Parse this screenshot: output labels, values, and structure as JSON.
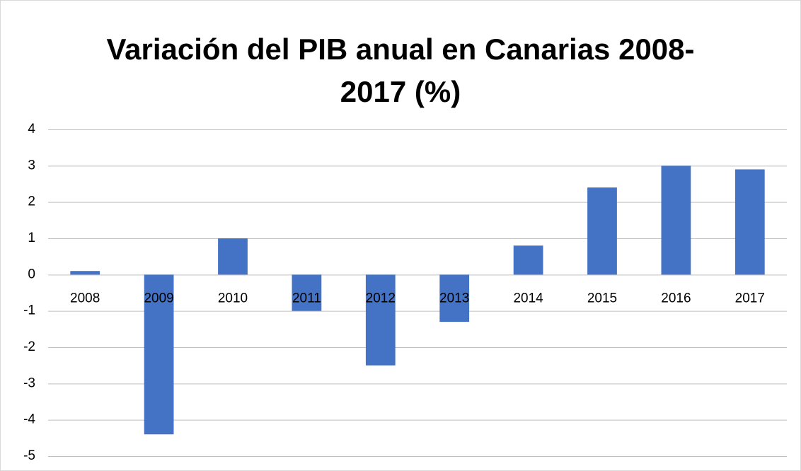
{
  "chart_data": {
    "type": "bar",
    "title": "Variación del PIB anual en Canarias 2008-2017 (%)",
    "categories": [
      "2008",
      "2009",
      "2010",
      "2011",
      "2012",
      "2013",
      "2014",
      "2015",
      "2016",
      "2017"
    ],
    "values": [
      0.1,
      -4.4,
      1.0,
      -1.0,
      -2.5,
      -1.3,
      0.8,
      2.4,
      3.0,
      2.9
    ],
    "color": "#4472c4",
    "ylim": [
      -5,
      4
    ],
    "yticks": [
      -5,
      -4,
      -3,
      -2,
      -1,
      0,
      1,
      2,
      3,
      4
    ],
    "grid": true
  }
}
